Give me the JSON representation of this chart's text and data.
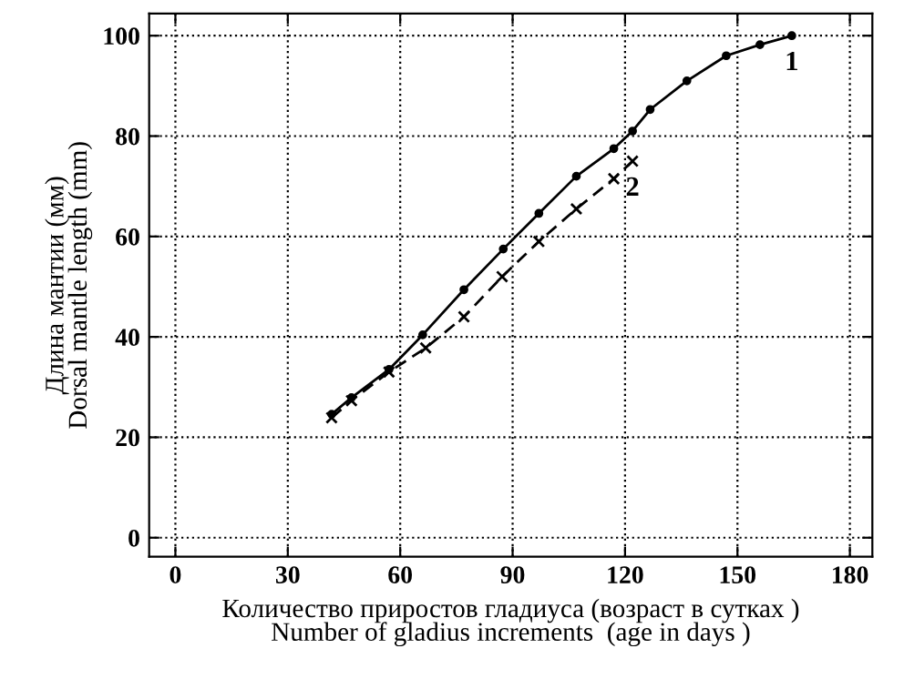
{
  "chart_data": {
    "type": "line",
    "xlabel": "Количество приростов гладиуса (возраст в сутках )\nNumber of gladius increments  (age in days )",
    "ylabel": "Длина мантии (мм)\nDorsal mantle length (mm)",
    "series": [
      {
        "name": "1",
        "color": "#000000",
        "marker": "circle",
        "line_style": "solid",
        "x": [
          41.7,
          47,
          57,
          66,
          77,
          87.5,
          97,
          107,
          117,
          122,
          126.7,
          136.5,
          147,
          156,
          164.5
        ],
        "values": [
          24.6,
          27.9,
          33.5,
          40.4,
          49.4,
          57.5,
          64.6,
          72,
          77.5,
          81,
          85.3,
          91,
          96,
          98.2,
          100
        ]
      },
      {
        "name": "2",
        "color": "#000000",
        "marker": "cross",
        "line_style": "dashed",
        "x": [
          41.7,
          47,
          57,
          66.8,
          77,
          87.2,
          97,
          107,
          117,
          122
        ],
        "values": [
          23.9,
          27.3,
          33,
          37.8,
          44,
          52,
          59,
          65.5,
          71.5,
          75
        ]
      }
    ],
    "xlim": [
      -7,
      186
    ],
    "xticks": [
      0,
      30,
      60,
      90,
      120,
      150,
      180
    ],
    "ylim": [
      -3.8,
      104.4
    ],
    "yticks": [
      0,
      20,
      40,
      60,
      80,
      100
    ],
    "grid": true,
    "legend": false
  }
}
